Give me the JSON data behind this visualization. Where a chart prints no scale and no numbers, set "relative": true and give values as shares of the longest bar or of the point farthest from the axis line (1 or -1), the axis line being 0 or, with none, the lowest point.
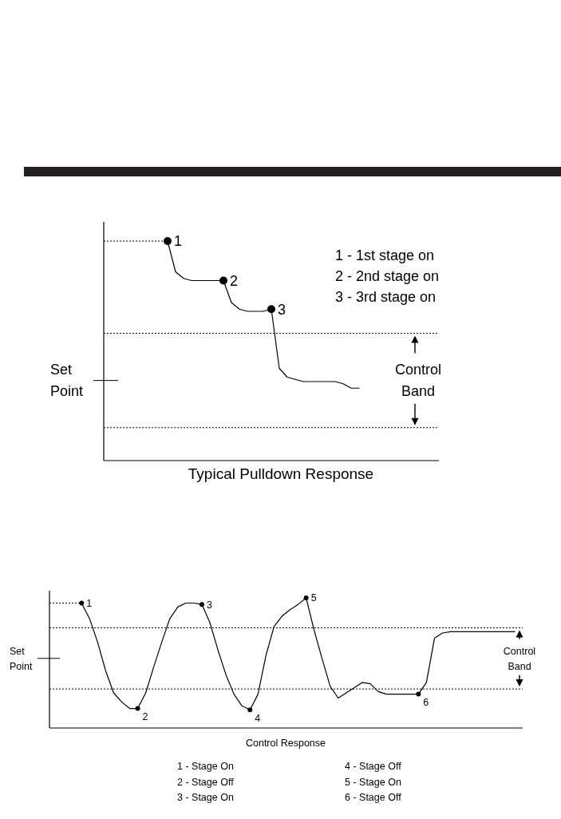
{
  "chart_data": [
    {
      "type": "line",
      "title": "Typical Pulldown Response",
      "relative": true,
      "categories": [
        null,
        null,
        null,
        null,
        null,
        null,
        null,
        null,
        null,
        null,
        null,
        null,
        null,
        null,
        null,
        null,
        null,
        null,
        null,
        null,
        null,
        null,
        null,
        null,
        null,
        null,
        null,
        null,
        null,
        null,
        null,
        null,
        null,
        null,
        null,
        null,
        null,
        null,
        null,
        null,
        null,
        null,
        null
      ],
      "series": [
        {
          "color": "#000000",
          "values": [
            null,
            null,
            null,
            null,
            null,
            null,
            null,
            null,
            1.0,
            0.86,
            0.83,
            0.82,
            0.82,
            0.82,
            0.82,
            0.82,
            0.72,
            0.69,
            0.68,
            0.68,
            0.68,
            0.69,
            0.42,
            0.38,
            0.37,
            0.36,
            0.36,
            0.36,
            0.36,
            0.36,
            0.35,
            0.33,
            0.33,
            null,
            null,
            null,
            null,
            null,
            null,
            null,
            null,
            null,
            null
          ]
        }
      ],
      "ref_lines": [
        {
          "axis": "y",
          "value": 0.58,
          "line_style": "dotted"
        },
        {
          "axis": "y",
          "value": 0.15,
          "line_style": "dotted"
        }
      ],
      "annotations": [
        "1",
        "2",
        "3",
        "1 - 1st stage on",
        "2 - 2nd stage on",
        "3 - 3rd stage on",
        "Set Point",
        "Control Band"
      ]
    },
    {
      "type": "line",
      "title": "Control Response",
      "relative": true,
      "categories": [
        null,
        null,
        null,
        null,
        null,
        null,
        null,
        null,
        null,
        null,
        null,
        null,
        null,
        null,
        null,
        null,
        null,
        null,
        null,
        null,
        null,
        null,
        null,
        null,
        null,
        null,
        null,
        null,
        null,
        null,
        null,
        null,
        null,
        null,
        null,
        null,
        null,
        null,
        null,
        null,
        null,
        null,
        null,
        null,
        null,
        null,
        null,
        null,
        null,
        null,
        null,
        null,
        null,
        null,
        null,
        null,
        null,
        null,
        null,
        null
      ],
      "series": [
        {
          "color": "#000000",
          "values": [
            null,
            null,
            null,
            null,
            0.96,
            0.84,
            0.66,
            0.44,
            0.27,
            0.2,
            0.15,
            0.15,
            0.27,
            0.47,
            0.66,
            0.84,
            0.93,
            0.96,
            0.96,
            0.95,
            0.81,
            0.6,
            0.41,
            0.26,
            0.17,
            0.14,
            0.26,
            0.56,
            0.78,
            0.86,
            0.91,
            0.95,
            1,
            0.75,
            0.53,
            0.32,
            0.23,
            0.27,
            0.31,
            0.35,
            0.34,
            0.28,
            0.26,
            0.26,
            0.26,
            0.26,
            0.26,
            0.35,
            0.69,
            0.73,
            0.74,
            0.74,
            0.74,
            0.74,
            0.74,
            0.74,
            0.74,
            0.74,
            0.74,
            null
          ]
        }
      ],
      "ref_lines": [
        {
          "axis": "y",
          "value": 0.77,
          "line_style": "dotted"
        },
        {
          "axis": "y",
          "value": 0.3,
          "line_style": "dotted"
        }
      ],
      "annotations": [
        "1",
        "2",
        "3",
        "4",
        "5",
        "6",
        "1 - Stage On",
        "2 - Stage Off",
        "3 - Stage On",
        "4 - Stage Off",
        "5 - Stage On",
        "6 - Stage Off",
        "Set Point",
        "Control Band"
      ]
    }
  ]
}
